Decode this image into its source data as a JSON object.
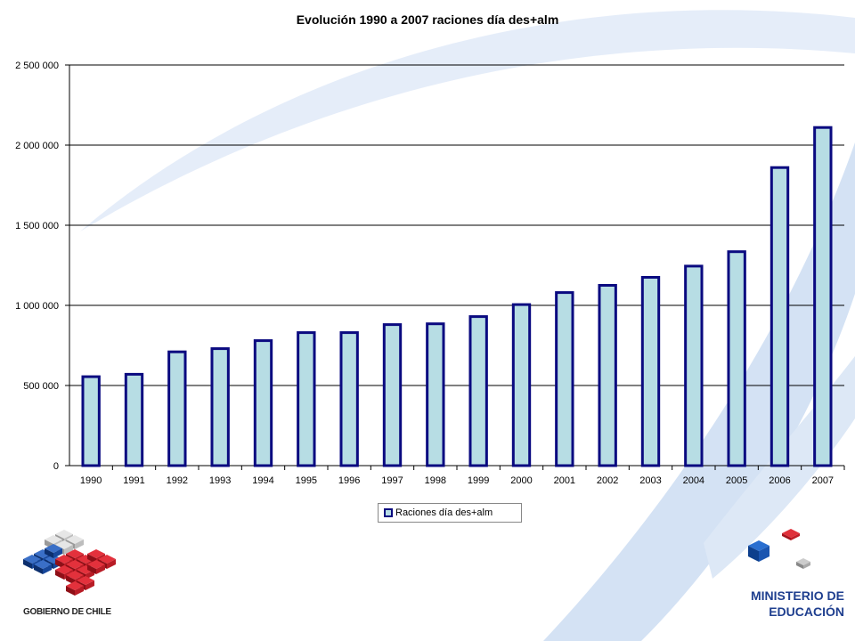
{
  "chart_data": {
    "type": "bar",
    "title": "Evolución 1990 a 2007 raciones día des+alm",
    "categories": [
      "1990",
      "1991",
      "1992",
      "1993",
      "1994",
      "1995",
      "1996",
      "1997",
      "1998",
      "1999",
      "2000",
      "2001",
      "2002",
      "2003",
      "2004",
      "2005",
      "2006",
      "2007"
    ],
    "series": [
      {
        "name": "Raciones día des+alm",
        "values": [
          555000,
          570000,
          710000,
          730000,
          780000,
          830000,
          830000,
          880000,
          885000,
          930000,
          1005000,
          1080000,
          1125000,
          1175000,
          1245000,
          1335000,
          1860000,
          2110000
        ]
      }
    ],
    "yticks": [
      0,
      500000,
      1000000,
      1500000,
      2000000,
      2500000
    ],
    "ytick_labels": [
      "0",
      "500 000",
      "1 000 000",
      "1 500 000",
      "2 000 000",
      "2 500 000"
    ],
    "ylim": [
      0,
      2500000
    ],
    "grid": true,
    "legend_position": "bottom",
    "colors": {
      "bar_fill": "#b7dde4",
      "bar_stroke": "#0a0a80"
    }
  },
  "branding": {
    "left_logo_text": "GOBIERNO DE CHILE",
    "ministry_line1": "MINISTERIO DE",
    "ministry_line2": "EDUCACIÓN"
  }
}
